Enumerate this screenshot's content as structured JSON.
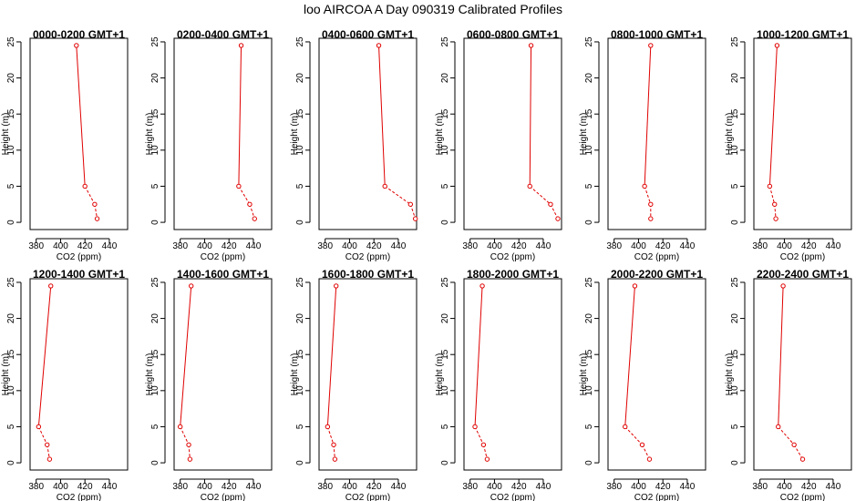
{
  "figure": {
    "title": "loo AIRCOA A  Day 090319  Calibrated Profiles"
  },
  "colors": {
    "series": "#e00000",
    "axis": "#000000",
    "background": "#ffffff"
  },
  "chart_data": [
    {
      "type": "line",
      "title": "0000-0200 GMT+1",
      "xlabel": "CO2 (ppm)",
      "ylabel": "Height (m)",
      "xlim": [
        375,
        455
      ],
      "ylim": [
        -1,
        25.5
      ],
      "xticks": [
        380,
        400,
        420,
        440
      ],
      "yticks": [
        0,
        5,
        10,
        15,
        20,
        25
      ],
      "x": [
        413,
        420,
        428,
        430
      ],
      "y": [
        24.5,
        5,
        2.5,
        0.5
      ]
    },
    {
      "type": "line",
      "title": "0200-0400 GMT+1",
      "xlabel": "CO2 (ppm)",
      "ylabel": "Height (m)",
      "xlim": [
        375,
        455
      ],
      "ylim": [
        -1,
        25.5
      ],
      "xticks": [
        380,
        400,
        420,
        440
      ],
      "yticks": [
        0,
        5,
        10,
        15,
        20,
        25
      ],
      "x": [
        430,
        428,
        437,
        441
      ],
      "y": [
        24.5,
        5,
        2.5,
        0.5
      ]
    },
    {
      "type": "line",
      "title": "0400-0600 GMT+1",
      "xlabel": "CO2 (ppm)",
      "ylabel": "Height (m)",
      "xlim": [
        375,
        455
      ],
      "ylim": [
        -1,
        25.5
      ],
      "xticks": [
        380,
        400,
        420,
        440
      ],
      "yticks": [
        0,
        5,
        10,
        15,
        20,
        25
      ],
      "x": [
        424,
        429,
        450,
        454
      ],
      "y": [
        24.5,
        5,
        2.5,
        0.5
      ]
    },
    {
      "type": "line",
      "title": "0600-0800 GMT+1",
      "xlabel": "CO2 (ppm)",
      "ylabel": "Height (m)",
      "xlim": [
        375,
        455
      ],
      "ylim": [
        -1,
        25.5
      ],
      "xticks": [
        380,
        400,
        420,
        440
      ],
      "yticks": [
        0,
        5,
        10,
        15,
        20,
        25
      ],
      "x": [
        430,
        429,
        446,
        452
      ],
      "y": [
        24.5,
        5,
        2.5,
        0.5
      ]
    },
    {
      "type": "line",
      "title": "0800-1000 GMT+1",
      "xlabel": "CO2 (ppm)",
      "ylabel": "Height (m)",
      "xlim": [
        375,
        455
      ],
      "ylim": [
        -1,
        25.5
      ],
      "xticks": [
        380,
        400,
        420,
        440
      ],
      "yticks": [
        0,
        5,
        10,
        15,
        20,
        25
      ],
      "x": [
        410,
        405,
        410,
        410
      ],
      "y": [
        24.5,
        5,
        2.5,
        0.5
      ]
    },
    {
      "type": "line",
      "title": "1000-1200 GMT+1",
      "xlabel": "CO2 (ppm)",
      "ylabel": "Height (m)",
      "xlim": [
        375,
        455
      ],
      "ylim": [
        -1,
        25.5
      ],
      "xticks": [
        380,
        400,
        420,
        440
      ],
      "yticks": [
        0,
        5,
        10,
        15,
        20,
        25
      ],
      "x": [
        394,
        388,
        392,
        393
      ],
      "y": [
        24.5,
        5,
        2.5,
        0.5
      ]
    },
    {
      "type": "line",
      "title": "1200-1400 GMT+1",
      "xlabel": "CO2 (ppm)",
      "ylabel": "Height (m)",
      "xlim": [
        375,
        455
      ],
      "ylim": [
        -1,
        25.5
      ],
      "xticks": [
        380,
        400,
        420,
        440
      ],
      "yticks": [
        0,
        5,
        10,
        15,
        20,
        25
      ],
      "x": [
        392,
        382,
        389,
        391
      ],
      "y": [
        24.5,
        5,
        2.5,
        0.5
      ]
    },
    {
      "type": "line",
      "title": "1400-1600 GMT+1",
      "xlabel": "CO2 (ppm)",
      "ylabel": "Height (m)",
      "xlim": [
        375,
        455
      ],
      "ylim": [
        -1,
        25.5
      ],
      "xticks": [
        380,
        400,
        420,
        440
      ],
      "yticks": [
        0,
        5,
        10,
        15,
        20,
        25
      ],
      "x": [
        389,
        380,
        387,
        388
      ],
      "y": [
        24.5,
        5,
        2.5,
        0.5
      ]
    },
    {
      "type": "line",
      "title": "1600-1800 GMT+1",
      "xlabel": "CO2 (ppm)",
      "ylabel": "Height (m)",
      "xlim": [
        375,
        455
      ],
      "ylim": [
        -1,
        25.5
      ],
      "xticks": [
        380,
        400,
        420,
        440
      ],
      "yticks": [
        0,
        5,
        10,
        15,
        20,
        25
      ],
      "x": [
        389,
        382,
        387,
        388
      ],
      "y": [
        24.5,
        5,
        2.5,
        0.5
      ]
    },
    {
      "type": "line",
      "title": "1800-2000 GMT+1",
      "xlabel": "CO2 (ppm)",
      "ylabel": "Height (m)",
      "xlim": [
        375,
        455
      ],
      "ylim": [
        -1,
        25.5
      ],
      "xticks": [
        380,
        400,
        420,
        440
      ],
      "yticks": [
        0,
        5,
        10,
        15,
        20,
        25
      ],
      "x": [
        390,
        384,
        391,
        394
      ],
      "y": [
        24.5,
        5,
        2.5,
        0.5
      ]
    },
    {
      "type": "line",
      "title": "2000-2200 GMT+1",
      "xlabel": "CO2 (ppm)",
      "ylabel": "Height (m)",
      "xlim": [
        375,
        455
      ],
      "ylim": [
        -1,
        25.5
      ],
      "xticks": [
        380,
        400,
        420,
        440
      ],
      "yticks": [
        0,
        5,
        10,
        15,
        20,
        25
      ],
      "x": [
        397,
        389,
        403,
        409
      ],
      "y": [
        24.5,
        5,
        2.5,
        0.5
      ]
    },
    {
      "type": "line",
      "title": "2200-2400 GMT+1",
      "xlabel": "CO2 (ppm)",
      "ylabel": "Height (m)",
      "xlim": [
        375,
        455
      ],
      "ylim": [
        -1,
        25.5
      ],
      "xticks": [
        380,
        400,
        420,
        440
      ],
      "yticks": [
        0,
        5,
        10,
        15,
        20,
        25
      ],
      "x": [
        399,
        395,
        408,
        415
      ],
      "y": [
        24.5,
        5,
        2.5,
        0.5
      ]
    }
  ]
}
